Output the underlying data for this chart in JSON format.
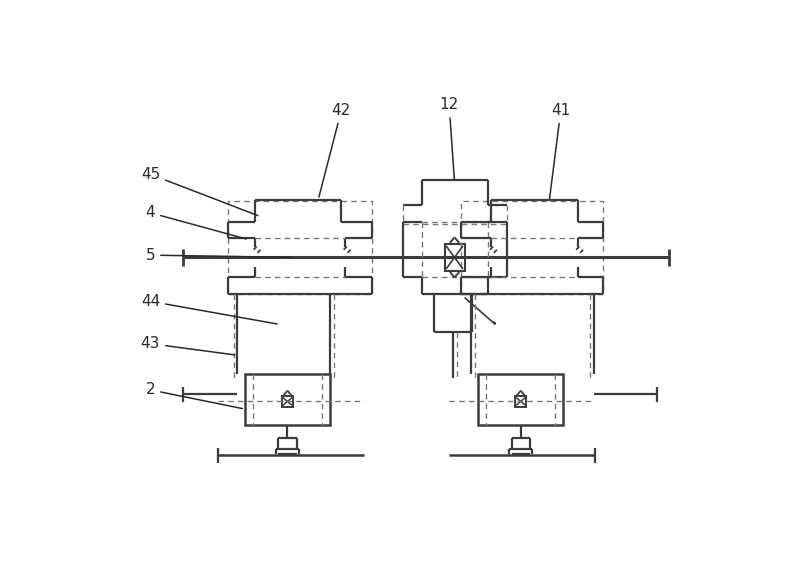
{
  "bg_color": "#ffffff",
  "lc": "#3c3c3c",
  "dc": "#7a7a7a",
  "fig_width": 8.05,
  "fig_height": 5.86
}
